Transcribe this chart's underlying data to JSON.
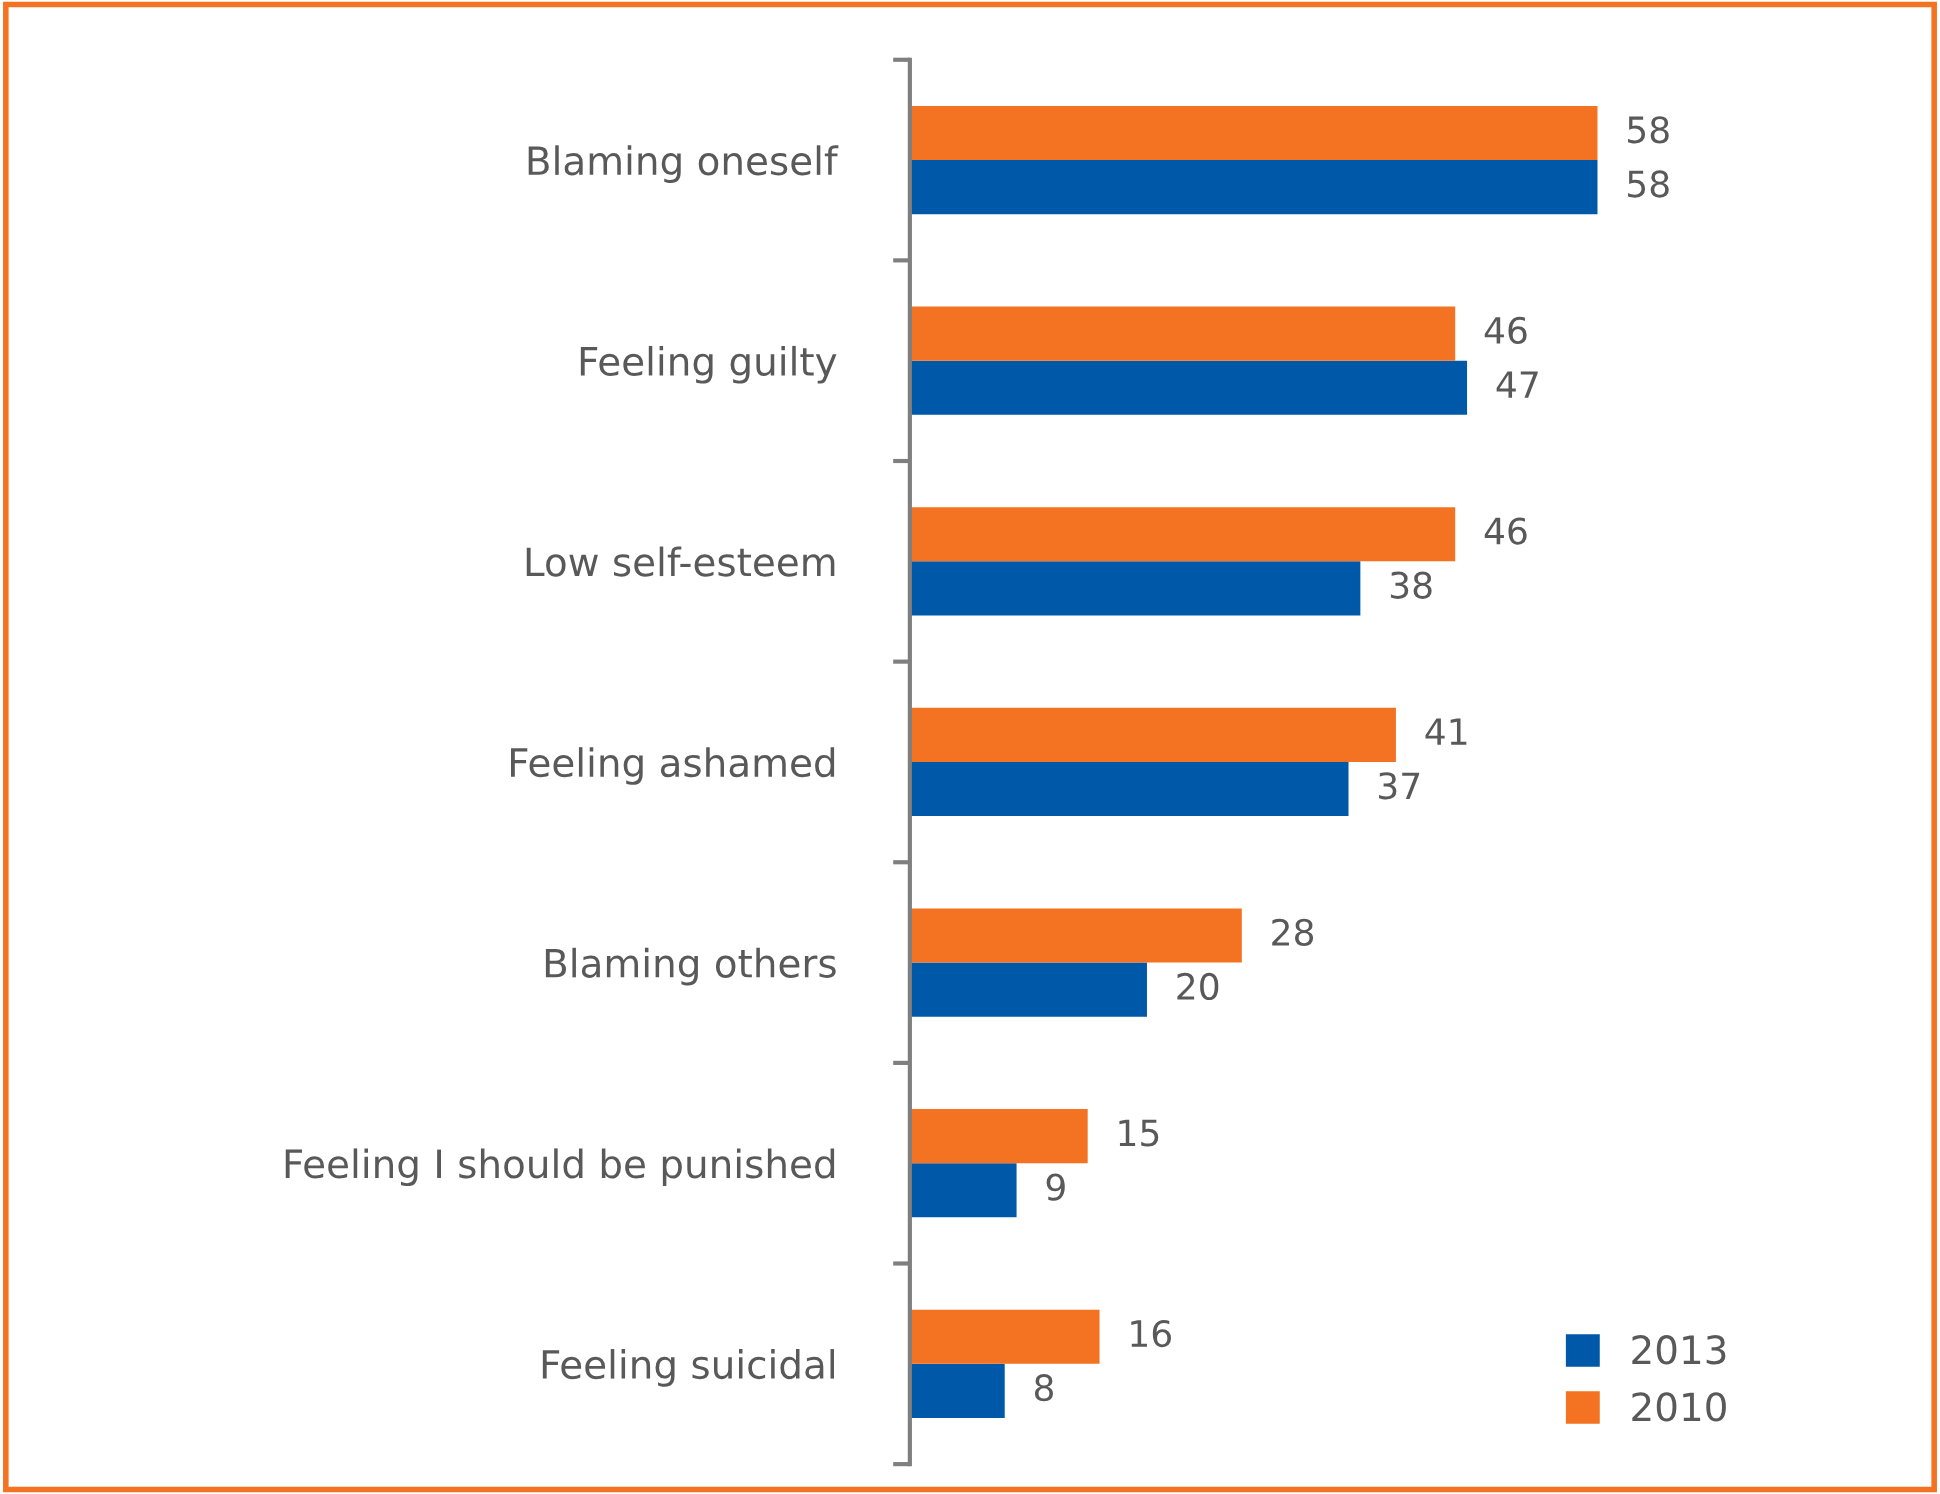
{
  "chart_data": {
    "type": "bar",
    "orientation": "horizontal",
    "categories": [
      "Blaming oneself",
      "Feeling guilty",
      "Low self-esteem",
      "Feeling ashamed",
      "Blaming others",
      "Feeling I should be punished",
      "Feeling suicidal"
    ],
    "series": [
      {
        "name": "2013",
        "color": "#0058a8",
        "values": [
          58,
          47,
          38,
          37,
          20,
          9,
          8
        ]
      },
      {
        "name": "2010",
        "color": "#f47323",
        "values": [
          58,
          46,
          46,
          41,
          28,
          15,
          16
        ]
      }
    ],
    "data_labels": true,
    "legend": "bottom right",
    "grid": false
  }
}
